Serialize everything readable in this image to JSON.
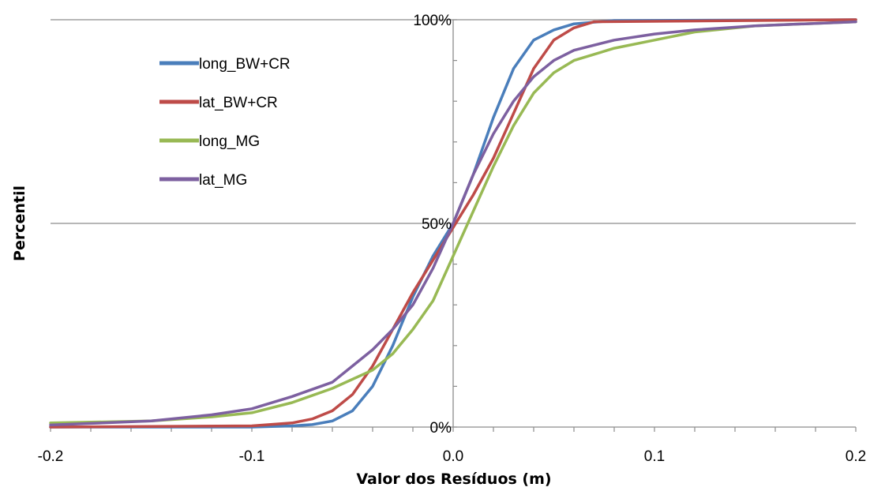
{
  "chart_data": {
    "type": "line",
    "title": "",
    "xlabel": "Valor dos Resíduos (m)",
    "ylabel": "Percentil",
    "xlim": [
      -0.2,
      0.2
    ],
    "ylim": [
      0,
      100
    ],
    "x_ticks": [
      -0.2,
      -0.1,
      0.0,
      0.1,
      0.2
    ],
    "x_tick_labels": [
      "-0.2",
      "-0.1",
      "0.0",
      "0.1",
      "0.2"
    ],
    "y_ticks": [
      0,
      50,
      100
    ],
    "y_tick_labels": [
      "0%",
      "50%",
      "100%"
    ],
    "grid": true,
    "legend_position": "top-left",
    "series": [
      {
        "name": "long_BW+CR",
        "color": "#4a7ebb",
        "points": [
          [
            -0.2,
            0
          ],
          [
            -0.1,
            0
          ],
          [
            -0.08,
            0.3
          ],
          [
            -0.07,
            0.6
          ],
          [
            -0.06,
            1.5
          ],
          [
            -0.05,
            4
          ],
          [
            -0.04,
            10
          ],
          [
            -0.03,
            20
          ],
          [
            -0.02,
            32
          ],
          [
            -0.01,
            42
          ],
          [
            0,
            50
          ],
          [
            0.01,
            62
          ],
          [
            0.02,
            76
          ],
          [
            0.03,
            88
          ],
          [
            0.04,
            95
          ],
          [
            0.05,
            97.5
          ],
          [
            0.06,
            99
          ],
          [
            0.08,
            99.8
          ],
          [
            0.2,
            100
          ]
        ]
      },
      {
        "name": "lat_BW+CR",
        "color": "#be4b48",
        "points": [
          [
            -0.2,
            0
          ],
          [
            -0.1,
            0.3
          ],
          [
            -0.08,
            1
          ],
          [
            -0.07,
            2
          ],
          [
            -0.06,
            4
          ],
          [
            -0.05,
            8
          ],
          [
            -0.04,
            15
          ],
          [
            -0.03,
            24
          ],
          [
            -0.02,
            33
          ],
          [
            -0.01,
            41
          ],
          [
            0,
            49
          ],
          [
            0.01,
            57
          ],
          [
            0.02,
            66
          ],
          [
            0.03,
            77
          ],
          [
            0.04,
            88
          ],
          [
            0.05,
            95
          ],
          [
            0.06,
            98
          ],
          [
            0.07,
            99.5
          ],
          [
            0.2,
            100
          ]
        ]
      },
      {
        "name": "long_MG",
        "color": "#98b954",
        "points": [
          [
            -0.2,
            1
          ],
          [
            -0.15,
            1.5
          ],
          [
            -0.12,
            2.5
          ],
          [
            -0.1,
            3.5
          ],
          [
            -0.08,
            6
          ],
          [
            -0.06,
            9.5
          ],
          [
            -0.04,
            14
          ],
          [
            -0.03,
            18
          ],
          [
            -0.02,
            24
          ],
          [
            -0.01,
            31
          ],
          [
            0,
            42
          ],
          [
            0.01,
            53
          ],
          [
            0.02,
            64
          ],
          [
            0.03,
            74
          ],
          [
            0.04,
            82
          ],
          [
            0.05,
            87
          ],
          [
            0.06,
            90
          ],
          [
            0.08,
            93
          ],
          [
            0.1,
            95
          ],
          [
            0.12,
            97
          ],
          [
            0.15,
            98.5
          ],
          [
            0.2,
            99.5
          ]
        ]
      },
      {
        "name": "lat_MG",
        "color": "#7d60a0",
        "points": [
          [
            -0.2,
            0.5
          ],
          [
            -0.15,
            1.5
          ],
          [
            -0.12,
            3
          ],
          [
            -0.1,
            4.5
          ],
          [
            -0.08,
            7.5
          ],
          [
            -0.06,
            11
          ],
          [
            -0.05,
            15
          ],
          [
            -0.04,
            19
          ],
          [
            -0.03,
            24
          ],
          [
            -0.02,
            30
          ],
          [
            -0.01,
            39
          ],
          [
            0,
            50
          ],
          [
            0.01,
            62
          ],
          [
            0.02,
            72
          ],
          [
            0.03,
            80
          ],
          [
            0.04,
            86
          ],
          [
            0.05,
            90
          ],
          [
            0.06,
            92.5
          ],
          [
            0.08,
            95
          ],
          [
            0.1,
            96.5
          ],
          [
            0.12,
            97.5
          ],
          [
            0.15,
            98.5
          ],
          [
            0.2,
            99.5
          ]
        ]
      }
    ]
  }
}
